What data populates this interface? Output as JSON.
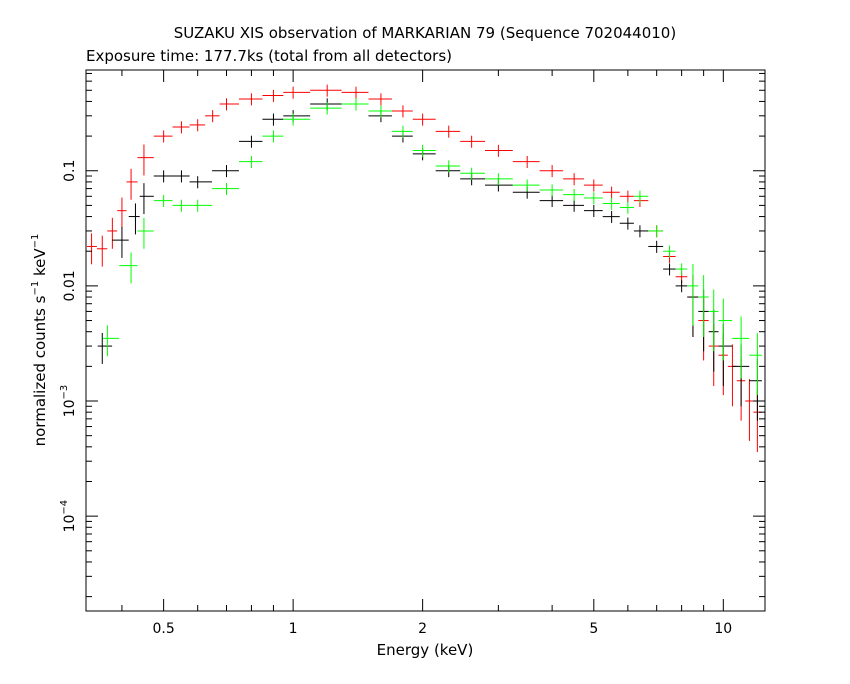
{
  "chart_data": {
    "type": "scatter",
    "title": "SUZAKU XIS observation of MARKARIAN 79 (Sequence 702044010)",
    "subtitle": "Exposure time: 177.7ks (total from all detectors)",
    "xlabel": "Energy (keV)",
    "ylabel_main": "normalized counts s",
    "ylabel_sup1": "−1",
    "ylabel_mid": " keV",
    "ylabel_sup2": "−1",
    "x_scale": "log",
    "y_scale": "log",
    "xlim": [
      0.33,
      12.5
    ],
    "ylim": [
      1.5e-05,
      0.75
    ],
    "x_ticks": [
      {
        "value": 0.5,
        "label": "0.5"
      },
      {
        "value": 1,
        "label": "1"
      },
      {
        "value": 2,
        "label": "2"
      },
      {
        "value": 5,
        "label": "5"
      },
      {
        "value": 10,
        "label": "10"
      }
    ],
    "y_ticks": [
      {
        "value": 0.1,
        "label": "0.1"
      },
      {
        "value": 0.01,
        "label": "0.01"
      },
      {
        "value": 0.001,
        "base": "10",
        "exp": "−3"
      },
      {
        "value": 0.0001,
        "base": "10",
        "exp": "−4"
      }
    ],
    "grid": false,
    "legend": "none",
    "series": [
      {
        "color": "#ff0000",
        "points": [
          {
            "x": 0.34,
            "y": 0.022
          },
          {
            "x": 0.36,
            "y": 0.021
          },
          {
            "x": 0.38,
            "y": 0.03
          },
          {
            "x": 0.4,
            "y": 0.045
          },
          {
            "x": 0.42,
            "y": 0.08
          },
          {
            "x": 0.45,
            "y": 0.13
          },
          {
            "x": 0.5,
            "y": 0.2
          },
          {
            "x": 0.55,
            "y": 0.24
          },
          {
            "x": 0.6,
            "y": 0.25
          },
          {
            "x": 0.65,
            "y": 0.3
          },
          {
            "x": 0.7,
            "y": 0.38
          },
          {
            "x": 0.8,
            "y": 0.42
          },
          {
            "x": 0.9,
            "y": 0.45
          },
          {
            "x": 1.0,
            "y": 0.48
          },
          {
            "x": 1.2,
            "y": 0.5
          },
          {
            "x": 1.4,
            "y": 0.48
          },
          {
            "x": 1.6,
            "y": 0.42
          },
          {
            "x": 1.8,
            "y": 0.33
          },
          {
            "x": 2.0,
            "y": 0.28
          },
          {
            "x": 2.3,
            "y": 0.22
          },
          {
            "x": 2.6,
            "y": 0.18
          },
          {
            "x": 3.0,
            "y": 0.15
          },
          {
            "x": 3.5,
            "y": 0.12
          },
          {
            "x": 4.0,
            "y": 0.1
          },
          {
            "x": 4.5,
            "y": 0.085
          },
          {
            "x": 5.0,
            "y": 0.075
          },
          {
            "x": 5.5,
            "y": 0.065
          },
          {
            "x": 6.0,
            "y": 0.06
          },
          {
            "x": 6.4,
            "y": 0.055
          },
          {
            "x": 7.0,
            "y": 0.03
          },
          {
            "x": 7.5,
            "y": 0.018
          },
          {
            "x": 8.0,
            "y": 0.012
          },
          {
            "x": 8.5,
            "y": 0.008
          },
          {
            "x": 9.0,
            "y": 0.005
          },
          {
            "x": 9.5,
            "y": 0.003
          },
          {
            "x": 10.0,
            "y": 0.0025
          },
          {
            "x": 10.5,
            "y": 0.002
          },
          {
            "x": 11.0,
            "y": 0.0015
          },
          {
            "x": 11.5,
            "y": 0.001
          },
          {
            "x": 12.0,
            "y": 0.0008
          }
        ]
      },
      {
        "color": "#000000",
        "points": [
          {
            "x": 0.36,
            "y": 0.003
          },
          {
            "x": 0.4,
            "y": 0.025
          },
          {
            "x": 0.43,
            "y": 0.04
          },
          {
            "x": 0.45,
            "y": 0.06
          },
          {
            "x": 0.5,
            "y": 0.09
          },
          {
            "x": 0.55,
            "y": 0.09
          },
          {
            "x": 0.6,
            "y": 0.08
          },
          {
            "x": 0.7,
            "y": 0.1
          },
          {
            "x": 0.8,
            "y": 0.18
          },
          {
            "x": 0.9,
            "y": 0.28
          },
          {
            "x": 1.0,
            "y": 0.3
          },
          {
            "x": 1.2,
            "y": 0.38
          },
          {
            "x": 1.4,
            "y": 0.38
          },
          {
            "x": 1.6,
            "y": 0.3
          },
          {
            "x": 1.8,
            "y": 0.2
          },
          {
            "x": 2.0,
            "y": 0.14
          },
          {
            "x": 2.3,
            "y": 0.1
          },
          {
            "x": 2.6,
            "y": 0.085
          },
          {
            "x": 3.0,
            "y": 0.075
          },
          {
            "x": 3.5,
            "y": 0.065
          },
          {
            "x": 4.0,
            "y": 0.055
          },
          {
            "x": 4.5,
            "y": 0.05
          },
          {
            "x": 5.0,
            "y": 0.045
          },
          {
            "x": 5.5,
            "y": 0.04
          },
          {
            "x": 6.0,
            "y": 0.035
          },
          {
            "x": 6.4,
            "y": 0.03
          },
          {
            "x": 7.0,
            "y": 0.022
          },
          {
            "x": 7.5,
            "y": 0.014
          },
          {
            "x": 8.0,
            "y": 0.01
          },
          {
            "x": 8.5,
            "y": 0.008
          },
          {
            "x": 9.0,
            "y": 0.006
          },
          {
            "x": 9.5,
            "y": 0.004
          },
          {
            "x": 10.0,
            "y": 0.003
          },
          {
            "x": 11.0,
            "y": 0.002
          },
          {
            "x": 12.0,
            "y": 0.0015
          }
        ]
      },
      {
        "color": "#00ff00",
        "points": [
          {
            "x": 0.37,
            "y": 0.0035
          },
          {
            "x": 0.42,
            "y": 0.015
          },
          {
            "x": 0.45,
            "y": 0.03
          },
          {
            "x": 0.5,
            "y": 0.055
          },
          {
            "x": 0.55,
            "y": 0.05
          },
          {
            "x": 0.6,
            "y": 0.05
          },
          {
            "x": 0.7,
            "y": 0.07
          },
          {
            "x": 0.8,
            "y": 0.12
          },
          {
            "x": 0.9,
            "y": 0.2
          },
          {
            "x": 1.0,
            "y": 0.28
          },
          {
            "x": 1.2,
            "y": 0.35
          },
          {
            "x": 1.4,
            "y": 0.38
          },
          {
            "x": 1.6,
            "y": 0.33
          },
          {
            "x": 1.8,
            "y": 0.22
          },
          {
            "x": 2.0,
            "y": 0.15
          },
          {
            "x": 2.3,
            "y": 0.11
          },
          {
            "x": 2.6,
            "y": 0.095
          },
          {
            "x": 3.0,
            "y": 0.085
          },
          {
            "x": 3.5,
            "y": 0.075
          },
          {
            "x": 4.0,
            "y": 0.068
          },
          {
            "x": 4.5,
            "y": 0.062
          },
          {
            "x": 5.0,
            "y": 0.058
          },
          {
            "x": 5.5,
            "y": 0.052
          },
          {
            "x": 6.0,
            "y": 0.048
          },
          {
            "x": 6.4,
            "y": 0.06
          },
          {
            "x": 7.0,
            "y": 0.03
          },
          {
            "x": 7.5,
            "y": 0.02
          },
          {
            "x": 8.0,
            "y": 0.014
          },
          {
            "x": 8.5,
            "y": 0.01
          },
          {
            "x": 9.0,
            "y": 0.008
          },
          {
            "x": 9.5,
            "y": 0.006
          },
          {
            "x": 10.0,
            "y": 0.005
          },
          {
            "x": 11.0,
            "y": 0.0035
          },
          {
            "x": 12.0,
            "y": 0.0025
          }
        ]
      }
    ]
  }
}
